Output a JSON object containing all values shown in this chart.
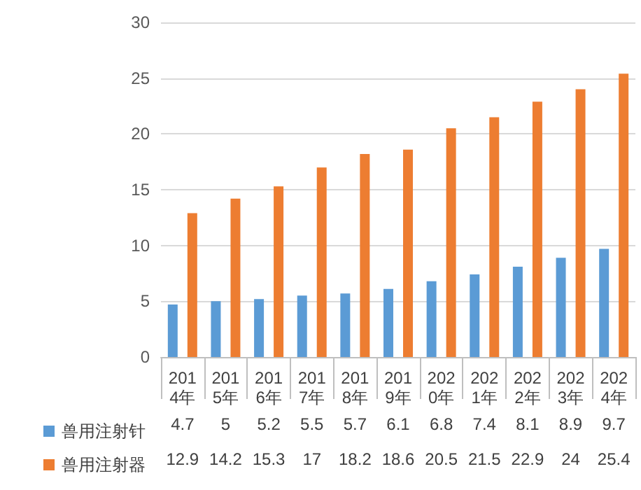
{
  "chart_data": {
    "type": "bar",
    "categories": [
      "2014年",
      "2015年",
      "2016年",
      "2017年",
      "2018年",
      "2019年",
      "2020年",
      "2021年",
      "2022年",
      "2023年",
      "2024年"
    ],
    "series": [
      {
        "name": "兽用注射针",
        "color": "#5b9bd5",
        "values": [
          4.7,
          5,
          5.2,
          5.5,
          5.7,
          6.1,
          6.8,
          7.4,
          8.1,
          8.9,
          9.7
        ]
      },
      {
        "name": "兽用注射器",
        "color": "#ed7d31",
        "values": [
          12.9,
          14.2,
          15.3,
          17,
          18.2,
          18.6,
          20.5,
          21.5,
          22.9,
          24,
          25.4
        ]
      }
    ],
    "ylim": [
      0,
      30
    ],
    "yticks": [
      0,
      5,
      10,
      15,
      20,
      25,
      30
    ],
    "grid": "y",
    "legend": "bottom",
    "data_labels": true
  }
}
